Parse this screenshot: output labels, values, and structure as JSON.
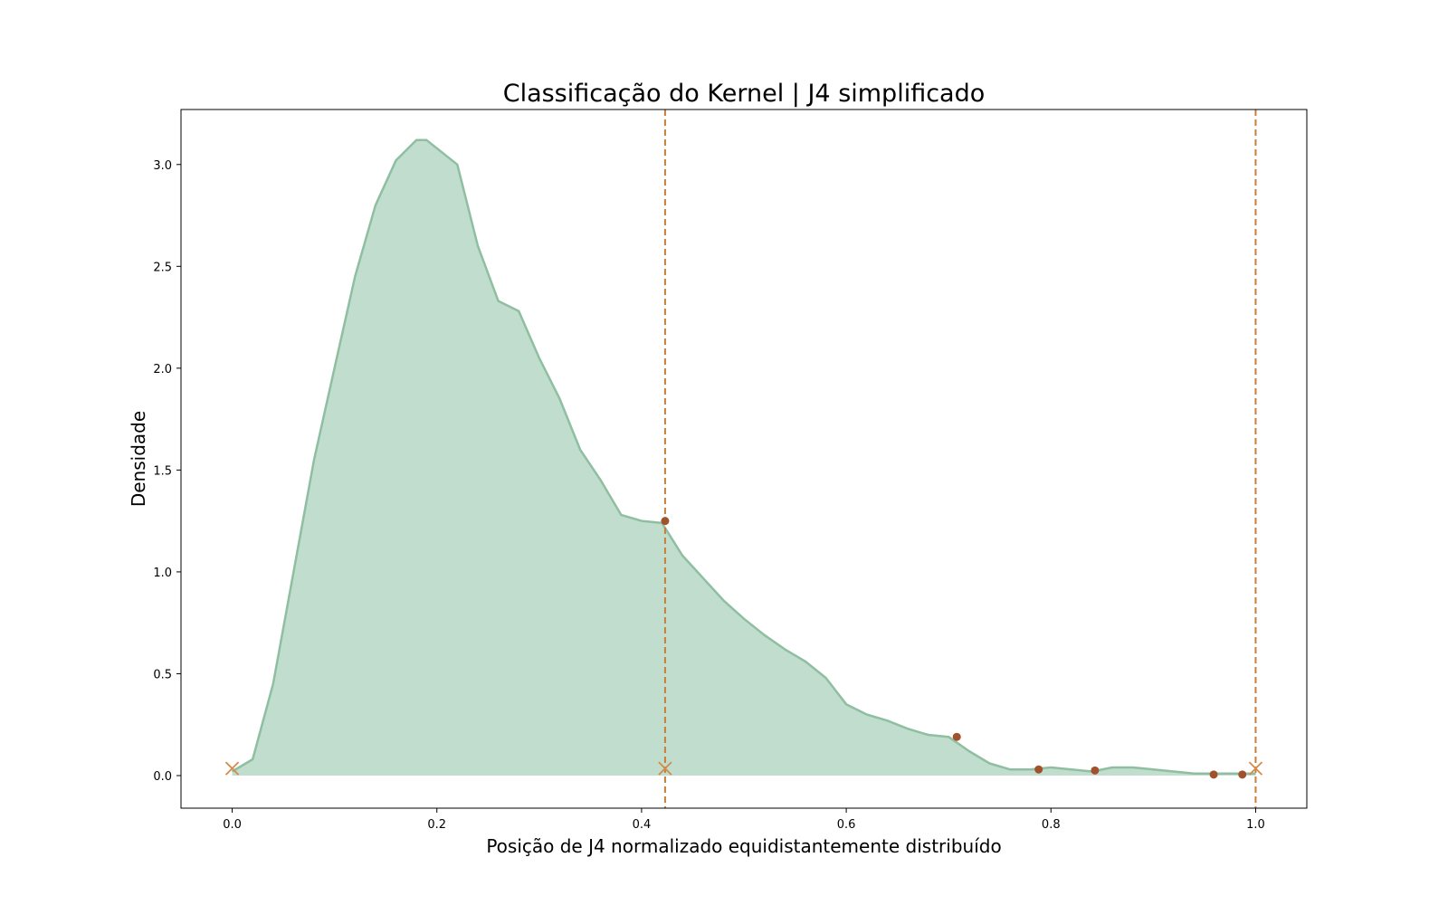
{
  "chart_data": {
    "type": "area",
    "title": "Classificação do Kernel | J4 simplificado",
    "xlabel": "Posição de J4 normalizado equidistantemente distribuído",
    "ylabel": "Densidade",
    "xlim": [
      -0.05,
      1.05
    ],
    "ylim": [
      -0.16,
      3.27
    ],
    "x_ticks": [
      0.0,
      0.2,
      0.4,
      0.6,
      0.8,
      1.0
    ],
    "x_tick_labels": [
      "0.0",
      "0.2",
      "0.4",
      "0.6",
      "0.8",
      "1.0"
    ],
    "y_ticks": [
      0.0,
      0.5,
      1.0,
      1.5,
      2.0,
      2.5,
      3.0
    ],
    "y_tick_labels": [
      "0.0",
      "0.5",
      "1.0",
      "1.5",
      "2.0",
      "2.5",
      "3.0"
    ],
    "grid": false,
    "legend": "none",
    "series": [
      {
        "kind": "density",
        "color": "#8fbfa0",
        "fill": "#c0ddce",
        "x": [
          0.0,
          0.02,
          0.04,
          0.06,
          0.08,
          0.1,
          0.12,
          0.14,
          0.16,
          0.18,
          0.19,
          0.2,
          0.22,
          0.24,
          0.26,
          0.28,
          0.3,
          0.32,
          0.34,
          0.36,
          0.38,
          0.4,
          0.42,
          0.44,
          0.46,
          0.48,
          0.5,
          0.52,
          0.54,
          0.56,
          0.58,
          0.6,
          0.62,
          0.64,
          0.66,
          0.68,
          0.7,
          0.72,
          0.74,
          0.76,
          0.78,
          0.8,
          0.82,
          0.84,
          0.86,
          0.88,
          0.9,
          0.92,
          0.94,
          0.96,
          0.98,
          1.0
        ],
        "y": [
          0.02,
          0.08,
          0.45,
          1.0,
          1.55,
          2.0,
          2.45,
          2.8,
          3.02,
          3.12,
          3.12,
          3.08,
          3.0,
          2.6,
          2.33,
          2.28,
          2.05,
          1.85,
          1.6,
          1.45,
          1.28,
          1.25,
          1.24,
          1.08,
          0.97,
          0.86,
          0.77,
          0.69,
          0.62,
          0.56,
          0.48,
          0.35,
          0.3,
          0.27,
          0.23,
          0.2,
          0.19,
          0.12,
          0.06,
          0.03,
          0.03,
          0.04,
          0.03,
          0.02,
          0.04,
          0.04,
          0.03,
          0.02,
          0.01,
          0.01,
          0.01,
          0.01
        ]
      }
    ],
    "vertical_lines": [
      {
        "x": 0.423,
        "color": "#c87f3a",
        "style": "dashed"
      },
      {
        "x": 1.0,
        "color": "#c87f3a",
        "style": "dashed"
      }
    ],
    "cross_markers": [
      {
        "x": 0.0,
        "y": 0.035
      },
      {
        "x": 0.423,
        "y": 0.035
      },
      {
        "x": 1.0,
        "y": 0.035
      }
    ],
    "dot_markers": [
      {
        "x": 0.423,
        "y": 1.25
      },
      {
        "x": 0.708,
        "y": 0.19
      },
      {
        "x": 0.788,
        "y": 0.03
      },
      {
        "x": 0.843,
        "y": 0.025
      },
      {
        "x": 0.959,
        "y": 0.005
      },
      {
        "x": 0.987,
        "y": 0.005
      }
    ],
    "marker_colors": {
      "cross": "#d28c4a",
      "dot": "#a0522d"
    }
  }
}
